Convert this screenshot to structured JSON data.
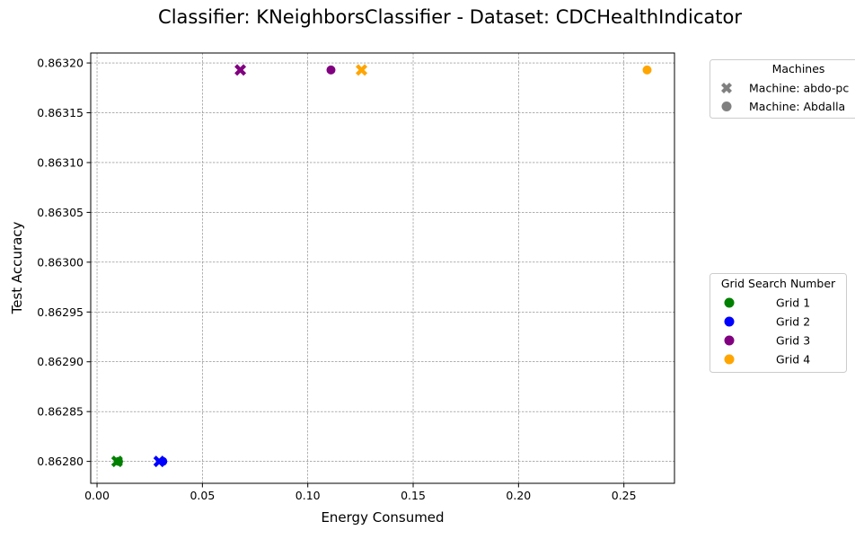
{
  "chart_data": {
    "type": "scatter",
    "title": "Classifier: KNeighborsClassifier - Dataset: CDCHealthIndicator",
    "xlabel": "Energy Consumed",
    "ylabel": "Test Accuracy",
    "xlim": [
      -0.003,
      0.274
    ],
    "ylim": [
      0.862778,
      0.86321
    ],
    "xticks": [
      0.0,
      0.05,
      0.1,
      0.15,
      0.2,
      0.25
    ],
    "xtick_labels": [
      "0.00",
      "0.05",
      "0.10",
      "0.15",
      "0.20",
      "0.25"
    ],
    "yticks": [
      0.8628,
      0.86285,
      0.8629,
      0.86295,
      0.863,
      0.86305,
      0.8631,
      0.86315,
      0.8632
    ],
    "ytick_labels": [
      "0.86280",
      "0.86285",
      "0.86290",
      "0.86295",
      "0.86300",
      "0.86305",
      "0.86310",
      "0.86315",
      "0.86320"
    ],
    "grid": true,
    "series": [
      {
        "name": "Grid 1",
        "color": "#008000",
        "points": [
          {
            "x": 0.0095,
            "y": 0.8628,
            "machine": "Machine: abdo-pc"
          },
          {
            "x": 0.0102,
            "y": 0.8628,
            "machine": "Machine: Abdalla"
          }
        ]
      },
      {
        "name": "Grid 2",
        "color": "#0000ff",
        "points": [
          {
            "x": 0.0295,
            "y": 0.8628,
            "machine": "Machine: abdo-pc"
          },
          {
            "x": 0.0312,
            "y": 0.8628,
            "machine": "Machine: Abdalla"
          }
        ]
      },
      {
        "name": "Grid 3",
        "color": "#800080",
        "points": [
          {
            "x": 0.068,
            "y": 0.863193,
            "machine": "Machine: abdo-pc"
          },
          {
            "x": 0.111,
            "y": 0.863193,
            "machine": "Machine: Abdalla"
          }
        ]
      },
      {
        "name": "Grid 4",
        "color": "#ffa500",
        "points": [
          {
            "x": 0.1255,
            "y": 0.863193,
            "machine": "Machine: abdo-pc"
          },
          {
            "x": 0.261,
            "y": 0.863193,
            "machine": "Machine: Abdalla"
          }
        ]
      }
    ],
    "legends": [
      {
        "title": "Machines",
        "placement": "outside upper right",
        "entries": [
          {
            "label": "Machine: abdo-pc",
            "marker": "x"
          },
          {
            "label": "Machine: Abdalla",
            "marker": "o"
          }
        ]
      },
      {
        "title": "Grid Search Number",
        "placement": "outside center right",
        "entries": [
          {
            "label": "Grid 1",
            "marker": "o",
            "color": "#008000"
          },
          {
            "label": "Grid 2",
            "marker": "o",
            "color": "#0000ff"
          },
          {
            "label": "Grid 3",
            "marker": "o",
            "color": "#800080"
          },
          {
            "label": "Grid 4",
            "marker": "o",
            "color": "#ffa500"
          }
        ]
      }
    ],
    "legend_marker_color": "#808080"
  }
}
